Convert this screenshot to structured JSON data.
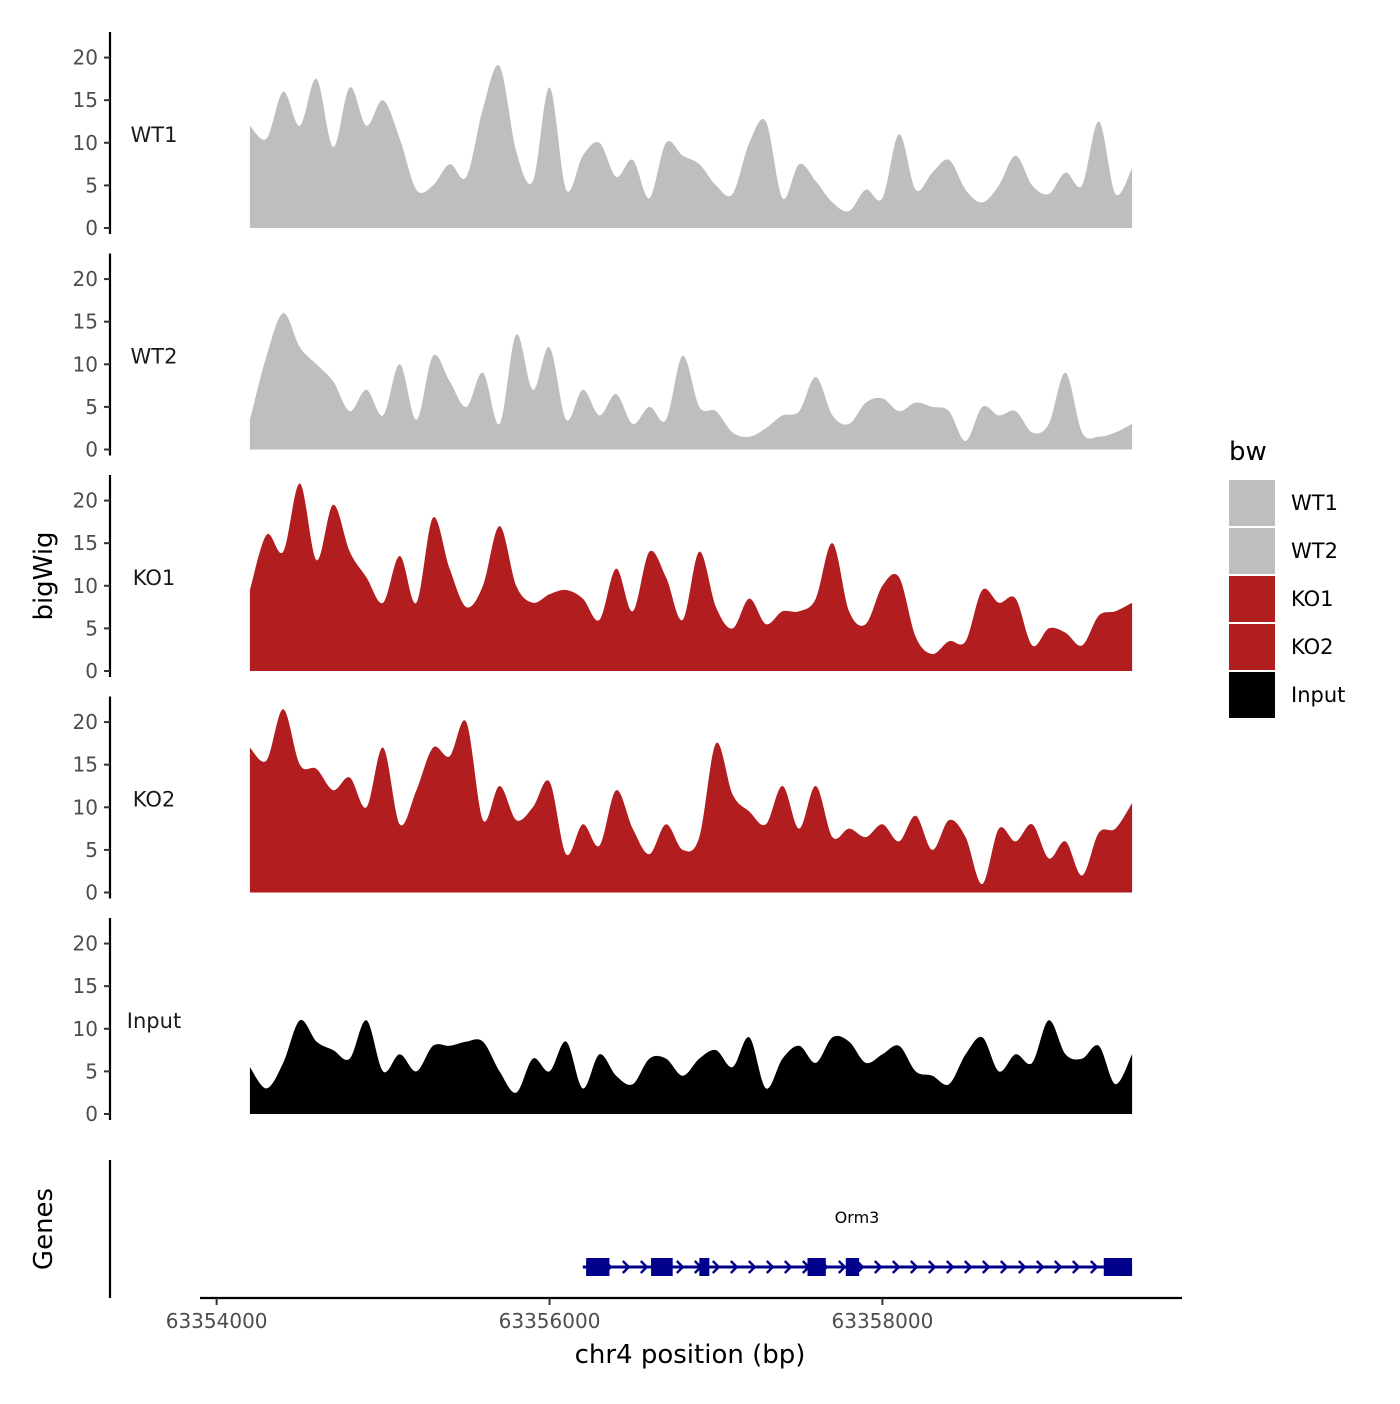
{
  "chart_data": {
    "type": "area",
    "x_axis": {
      "title": "chr4 position (bp)",
      "ticks": [
        63354000,
        63356000,
        63358000
      ],
      "tick_labels": [
        "63354000",
        "63356000",
        "63358000"
      ],
      "range": [
        63353900,
        63359800
      ]
    },
    "y_axis": {
      "title": "bigWig",
      "ticks": [
        0,
        5,
        10,
        15,
        20
      ],
      "tick_labels": [
        "0",
        "5",
        "10",
        "15",
        "20"
      ],
      "range": [
        0,
        23
      ]
    },
    "x": [
      63354200,
      63354300,
      63354400,
      63354500,
      63354600,
      63354700,
      63354800,
      63354900,
      63355000,
      63355100,
      63355200,
      63355300,
      63355400,
      63355500,
      63355600,
      63355700,
      63355800,
      63355900,
      63356000,
      63356100,
      63356200,
      63356300,
      63356400,
      63356500,
      63356600,
      63356700,
      63356800,
      63356900,
      63357000,
      63357100,
      63357200,
      63357300,
      63357400,
      63357500,
      63357600,
      63357700,
      63357800,
      63357900,
      63358000,
      63358100,
      63358200,
      63358300,
      63358400,
      63358500,
      63358600,
      63358700,
      63358800,
      63358900,
      63359000,
      63359100,
      63359200,
      63359300,
      63359400,
      63359500
    ],
    "series": [
      {
        "name": "WT1",
        "color": "#bebebe",
        "values": [
          12,
          10.5,
          16,
          12,
          17.5,
          9.5,
          16.5,
          12,
          15,
          10.5,
          4.5,
          5,
          7.5,
          6,
          14,
          19,
          9,
          5.5,
          16.5,
          4.5,
          8.5,
          10,
          6,
          8,
          3.5,
          10,
          8.5,
          7.5,
          5,
          4,
          10,
          12.5,
          3.5,
          7.5,
          5.5,
          3,
          2,
          4.5,
          3.5,
          11,
          4.5,
          6.5,
          8,
          4.5,
          3,
          5,
          8.5,
          5,
          4,
          6.5,
          5,
          12.5,
          4,
          7
        ]
      },
      {
        "name": "WT2",
        "color": "#bebebe",
        "values": [
          3.5,
          11,
          16,
          12,
          10,
          8,
          4.5,
          7,
          4,
          10,
          3.5,
          11,
          8,
          5,
          9,
          3,
          13.5,
          7,
          12,
          3.5,
          7,
          4,
          6.5,
          3,
          5,
          3.5,
          11,
          5,
          4.5,
          2,
          1.5,
          2.5,
          4,
          4.5,
          8.5,
          4,
          3,
          5.5,
          6,
          4.5,
          5.5,
          5,
          4.5,
          1,
          5,
          4,
          4.5,
          2,
          3,
          9,
          2,
          1.5,
          2,
          3
        ]
      },
      {
        "name": "KO1",
        "color": "#b21e20",
        "values": [
          9.5,
          16,
          14,
          22,
          13,
          19.5,
          14,
          11,
          8,
          13.5,
          8,
          18,
          12,
          7.5,
          10,
          17,
          10,
          8,
          9,
          9.5,
          8.5,
          6,
          12,
          7,
          14,
          11,
          6,
          14,
          7.5,
          5,
          8.5,
          5.5,
          7,
          7,
          8.5,
          15,
          7,
          5.5,
          10,
          11,
          4,
          2,
          3.5,
          3.5,
          9.5,
          8,
          8.5,
          3,
          5,
          4.5,
          3,
          6.5,
          7,
          8
        ]
      },
      {
        "name": "KO2",
        "color": "#b21e20",
        "values": [
          17,
          15.5,
          21.5,
          15,
          14.5,
          12,
          13.5,
          10,
          17,
          8,
          12,
          17,
          16,
          20,
          8.5,
          12.5,
          8.5,
          10,
          13,
          4.5,
          8,
          5.5,
          12,
          7.5,
          4.5,
          8,
          5,
          6.5,
          17.5,
          11.5,
          9.5,
          8,
          12.5,
          7.5,
          12.5,
          6.5,
          7.5,
          6.5,
          8,
          6,
          9,
          5,
          8.5,
          6.5,
          1,
          7.5,
          6,
          8,
          4,
          6,
          2,
          7,
          7.5,
          10.5
        ]
      },
      {
        "name": "Input",
        "color": "#000000",
        "values": [
          5.5,
          3,
          6,
          11,
          8.5,
          7.5,
          6.5,
          11,
          5,
          7,
          5,
          8,
          8,
          8.5,
          8.5,
          5,
          2.5,
          6.5,
          5,
          8.5,
          3,
          7,
          4.5,
          3.5,
          6.5,
          6.5,
          4.5,
          6.5,
          7.5,
          5.5,
          9,
          3,
          6.5,
          8,
          6,
          9,
          8.5,
          6,
          7,
          8,
          5,
          4.5,
          3.5,
          7,
          9,
          5,
          7,
          6,
          11,
          7,
          6.5,
          8,
          3.5,
          7
        ]
      }
    ],
    "gene_track": {
      "title": "Genes",
      "gene": {
        "name": "Orm3",
        "strand": "+",
        "start": 63356200,
        "end": 63359500,
        "exons": [
          [
            63356220,
            63356360
          ],
          [
            63356610,
            63356740
          ],
          [
            63356900,
            63356960
          ],
          [
            63357550,
            63357660
          ],
          [
            63357780,
            63357860
          ],
          [
            63359330,
            63359500
          ]
        ]
      },
      "color": "#00008b"
    },
    "legend": {
      "title": "bw",
      "position": "right",
      "entries": [
        {
          "label": "WT1",
          "color": "#bebebe"
        },
        {
          "label": "WT2",
          "color": "#bebebe"
        },
        {
          "label": "KO1",
          "color": "#b21e20"
        },
        {
          "label": "KO2",
          "color": "#b21e20"
        },
        {
          "label": "Input",
          "color": "#000000"
        }
      ]
    },
    "grid": false
  }
}
